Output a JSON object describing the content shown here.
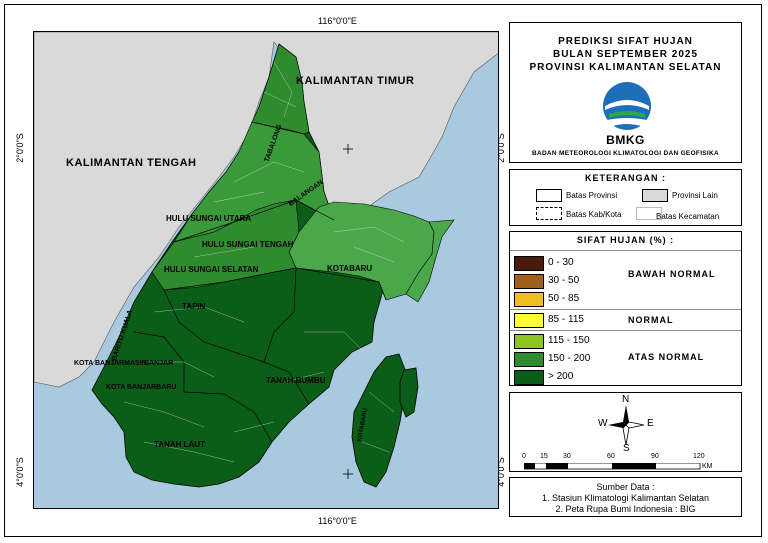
{
  "map": {
    "coords": {
      "top_lon": "116°0'0\"E",
      "bottom_lon": "116°0'0\"E",
      "left_lat_north": "2°0'0\"S",
      "left_lat_south": "4°0'0\"S",
      "right_lat_north": "2°0'0\"S",
      "right_lat_south": "4°0'0\"S"
    },
    "region_labels": {
      "kaltim": "KALIMANTAN TIMUR",
      "kalteng": "KALIMANTAN TENGAH"
    },
    "district_labels": {
      "tabalong": "TABALONG",
      "balangan": "BALANGAN",
      "hsu": "HULU SUNGAI UTARA",
      "hst": "HULU SUNGAI TENGAH",
      "hss": "HULU SUNGAI SELATAN",
      "tapin": "TAPIN",
      "kotabaru": "KOTABARU",
      "barito_kuala": "BARITO KUALA",
      "kota_banjarmasin": "KOTA BANJARMASIN",
      "banjar": "BANJAR",
      "kota_banjarbaru": "KOTA BANJARBARU",
      "tanah_bumbu": "TANAH BUMBU",
      "tanah_laut": "TANAH LAUT",
      "kotabaru_island": "KOTABARU"
    },
    "colors": {
      "sea": "#a9c9e0",
      "other_province": "#d9d9d9",
      "above_normal_dark": "#0b5e17",
      "green_150_200": "#2e8b2e",
      "green_light": "#4aa84a"
    }
  },
  "title": {
    "line1": "PREDIKSI SIFAT HUJAN",
    "line2": "BULAN SEPTEMBER 2025",
    "line3": "PROVINSI KALIMANTAN SELATAN",
    "logo_text": "BMKG",
    "org_name": "BADAN METEOROLOGI KLIMATOLOGI DAN GEOFISIKA"
  },
  "keterangan": {
    "heading": "KETERANGAN :",
    "batas_provinsi": "Batas Provinsi",
    "provinsi_lain": "Provinsi Lain",
    "batas_kab": "Batas Kab/Kota",
    "batas_kecamatan": "Batas Kecamatan"
  },
  "sifat_hujan": {
    "heading": "SIFAT HUJAN (%) :",
    "classes": [
      {
        "label": "0 - 30",
        "color": "#4a1a0a"
      },
      {
        "label": "30 - 50",
        "color": "#a0601a"
      },
      {
        "label": "50 - 85",
        "color": "#f0c020"
      },
      {
        "label": "85 - 115",
        "color": "#ffff33"
      },
      {
        "label": "115 - 150",
        "color": "#8fc31f"
      },
      {
        "label": "150 - 200",
        "color": "#2e8b2e"
      },
      {
        "label": "> 200",
        "color": "#0b5e17"
      }
    ],
    "groups": {
      "bawah": "BAWAH NORMAL",
      "normal": "NORMAL",
      "atas": "ATAS NORMAL"
    }
  },
  "north_arrow": {
    "n": "N",
    "s": "S",
    "e": "E",
    "w": "W"
  },
  "scale_bar": {
    "ticks": [
      "0",
      "15",
      "30",
      "60",
      "90",
      "120"
    ],
    "unit": "KM"
  },
  "source": {
    "heading": "Sumber Data :",
    "line1": "1. Stasiun Klimatologi Kalimantan Selatan",
    "line2": "2. Peta Rupa Bumi Indonesia : BIG"
  }
}
